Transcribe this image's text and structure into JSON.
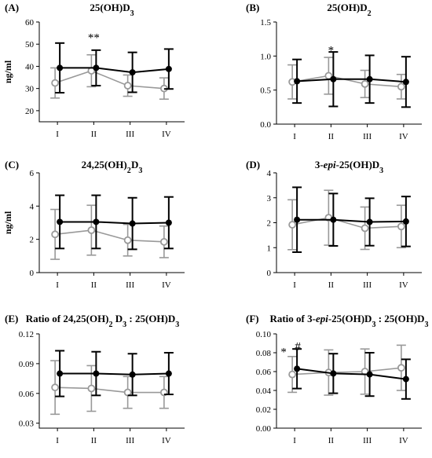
{
  "figure": {
    "panel_positions": "3 rows x 2 columns",
    "series_styles": [
      {
        "marker": "filled-circle",
        "color": "#000000"
      },
      {
        "marker": "open-circle",
        "color": "#999999"
      }
    ]
  },
  "chart_data": [
    {
      "type": "line",
      "panel_label": "(A)",
      "title_html": "25(OH)D<tspan baseline-shift='sub' font-size='10'>3</tspan>",
      "ylabel": "ng/ml",
      "categories": [
        "I",
        "II",
        "III",
        "IV"
      ],
      "yticks": [
        20,
        30,
        40,
        50,
        60
      ],
      "ylim": [
        15,
        60
      ],
      "series": [
        {
          "style": "gray-open",
          "values": [
            32.5,
            38.0,
            31.3,
            30.0
          ],
          "err": [
            6.8,
            7.2,
            4.8,
            4.8
          ]
        },
        {
          "style": "black-filled",
          "values": [
            39.3,
            39.3,
            37.3,
            38.8
          ],
          "err": [
            11.2,
            8.0,
            9.0,
            9.0
          ]
        }
      ],
      "annotations": [
        {
          "text": "**",
          "category": "II",
          "y": 53.5
        }
      ]
    },
    {
      "type": "line",
      "panel_label": "(B)",
      "title_html": "25(OH)D<tspan baseline-shift='sub' font-size='10'>2</tspan>",
      "ylabel": "",
      "categories": [
        "I",
        "II",
        "III",
        "IV"
      ],
      "yticks": [
        0.0,
        0.5,
        1.0,
        1.5
      ],
      "ytick_labels": [
        "0.0",
        "0.5",
        "1.0",
        "1.5"
      ],
      "ylim": [
        0,
        1.5
      ],
      "series": [
        {
          "style": "gray-open",
          "values": [
            0.62,
            0.71,
            0.59,
            0.55
          ],
          "err": [
            0.25,
            0.27,
            0.2,
            0.18
          ]
        },
        {
          "style": "black-filled",
          "values": [
            0.63,
            0.66,
            0.66,
            0.62
          ],
          "err": [
            0.32,
            0.4,
            0.35,
            0.37
          ]
        }
      ],
      "annotations": [
        {
          "text": "*",
          "category": "II",
          "y": 1.1
        }
      ]
    },
    {
      "type": "line",
      "panel_label": "(C)",
      "title_html": "24,25(OH)<tspan baseline-shift='sub' font-size='10'>2</tspan><tspan baseline-shift='super' font-size='1'> </tspan>D<tspan baseline-shift='sub' font-size='10'>3</tspan>",
      "ylabel": "ng/ml",
      "categories": [
        "I",
        "II",
        "III",
        "IV"
      ],
      "yticks": [
        0,
        2,
        4,
        6
      ],
      "ylim": [
        0,
        6
      ],
      "series": [
        {
          "style": "gray-open",
          "values": [
            2.3,
            2.55,
            1.95,
            1.85
          ],
          "err": [
            1.5,
            1.5,
            0.95,
            0.95
          ]
        },
        {
          "style": "black-filled",
          "values": [
            3.05,
            3.05,
            2.95,
            3.0
          ],
          "err": [
            1.6,
            1.6,
            1.55,
            1.55
          ]
        }
      ],
      "annotations": []
    },
    {
      "type": "line",
      "panel_label": "(D)",
      "title_html": "3-<tspan font-style='italic'>epi</tspan>-25(OH)D<tspan baseline-shift='sub' font-size='10'>3</tspan>",
      "ylabel": "",
      "categories": [
        "I",
        "II",
        "III",
        "IV"
      ],
      "yticks": [
        0,
        1,
        2,
        3,
        4
      ],
      "ylim": [
        0,
        4
      ],
      "series": [
        {
          "style": "gray-open",
          "values": [
            1.92,
            2.2,
            1.78,
            1.85
          ],
          "err": [
            1.0,
            1.1,
            0.85,
            0.85
          ]
        },
        {
          "style": "black-filled",
          "values": [
            2.12,
            2.12,
            2.03,
            2.05
          ],
          "err": [
            1.3,
            1.05,
            0.95,
            1.0
          ]
        }
      ],
      "annotations": []
    },
    {
      "type": "line",
      "panel_label": "(E)",
      "title_html": "Ratio of 24,25(OH)<tspan baseline-shift='sub' font-size='10'>2</tspan><tspan> </tspan>D<tspan baseline-shift='sub' font-size='10'>3</tspan><tspan> : 25(OH)D</tspan><tspan baseline-shift='sub' font-size='10'>3</tspan>",
      "ylabel": "",
      "categories": [
        "I",
        "II",
        "III",
        "IV"
      ],
      "yticks": [
        0.03,
        0.06,
        0.09,
        0.12
      ],
      "ytick_labels": [
        "0.03",
        "0.06",
        "0.09",
        "0.12"
      ],
      "ylim": [
        0.025,
        0.12
      ],
      "series": [
        {
          "style": "gray-open",
          "values": [
            0.066,
            0.065,
            0.061,
            0.061
          ],
          "err": [
            0.027,
            0.023,
            0.016,
            0.016
          ]
        },
        {
          "style": "black-filled",
          "values": [
            0.08,
            0.08,
            0.079,
            0.08
          ],
          "err": [
            0.023,
            0.022,
            0.021,
            0.021
          ]
        }
      ],
      "annotations": []
    },
    {
      "type": "line",
      "panel_label": "(F)",
      "title_html": "Ratio of 3-<tspan font-style='italic'>epi</tspan>-25(OH)D<tspan baseline-shift='sub' font-size='10'>3</tspan><tspan> : 25(OH)D</tspan><tspan baseline-shift='sub' font-size='10'>3</tspan>",
      "ylabel": "",
      "categories": [
        "I",
        "II",
        "III",
        "IV"
      ],
      "yticks": [
        0.0,
        0.02,
        0.04,
        0.06,
        0.08,
        0.1
      ],
      "ytick_labels": [
        "0.00",
        "0.02",
        "0.04",
        "0.06",
        "0.08",
        "0.10"
      ],
      "ylim": [
        0,
        0.1
      ],
      "series": [
        {
          "style": "gray-open",
          "values": [
            0.057,
            0.059,
            0.06,
            0.064
          ],
          "err": [
            0.019,
            0.024,
            0.024,
            0.024
          ]
        },
        {
          "style": "black-filled",
          "values": [
            0.063,
            0.058,
            0.057,
            0.052
          ],
          "err": [
            0.021,
            0.021,
            0.023,
            0.021
          ]
        }
      ],
      "annotations": [
        {
          "text": "*",
          "category": "I",
          "y": 0.082,
          "dx": -14
        },
        {
          "text": "#",
          "category": "I",
          "y": 0.088,
          "dx": 4
        }
      ]
    }
  ]
}
